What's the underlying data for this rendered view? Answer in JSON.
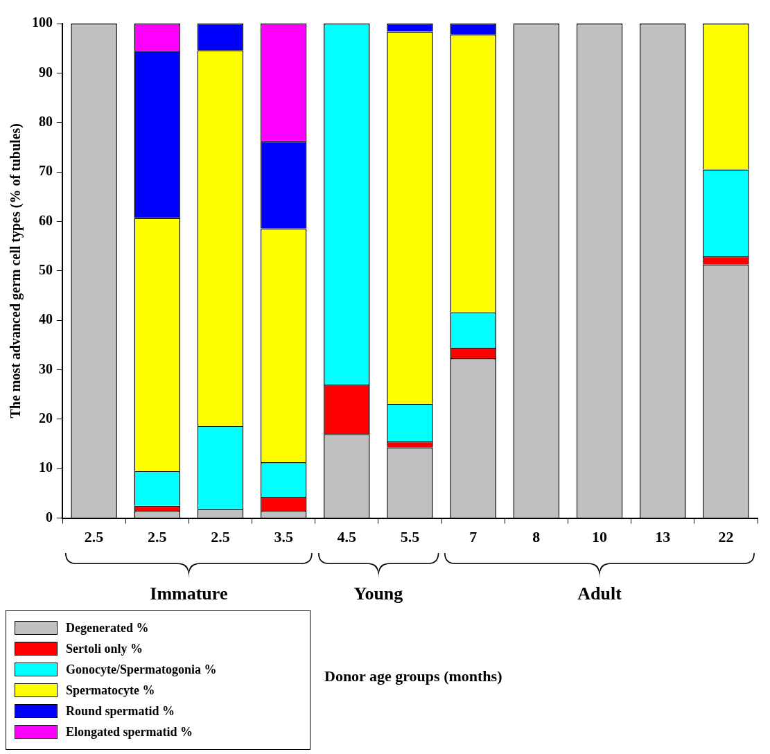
{
  "chart_data": {
    "type": "bar",
    "stacked": true,
    "ylabel": "The most advanced germ cell types (% of tubules)",
    "categories": [
      "2.5",
      "2.5",
      "2.5",
      "3.5",
      "4.5",
      "5.5",
      "7",
      "8",
      "10",
      "13",
      "22"
    ],
    "annotations": [
      "Immature",
      "Young",
      "Adult",
      "Donor age groups (months)"
    ],
    "ylim": [
      0,
      100
    ],
    "yticks": [
      0,
      10,
      20,
      30,
      40,
      50,
      60,
      70,
      80,
      90,
      100
    ],
    "grid": false,
    "legend": "bottom left",
    "series": [
      {
        "name": "Degenerated %",
        "color": "#c0c0c0",
        "values": [
          100,
          1.5,
          1.8,
          1.5,
          17,
          14.3,
          32.3,
          100,
          100,
          100,
          51.3
        ]
      },
      {
        "name": "Sertoli only %",
        "color": "#ff0000",
        "values": [
          null,
          1,
          null,
          2.8,
          10,
          1.2,
          2.1,
          null,
          null,
          null,
          1.6
        ]
      },
      {
        "name": "Gonocyte/Spermatogonia %",
        "color": "#00ffff",
        "values": [
          null,
          7,
          16.8,
          7,
          73,
          7.6,
          7.2,
          null,
          null,
          null,
          17.6
        ]
      },
      {
        "name": "Spermatocyte %",
        "color": "#ffff00",
        "values": [
          null,
          51.2,
          76,
          47.3,
          null,
          75.3,
          56.2,
          null,
          null,
          null,
          29.5
        ]
      },
      {
        "name": "Round spermatid %",
        "color": "#0000ff",
        "values": [
          null,
          33.8,
          5.4,
          17.6,
          null,
          1.6,
          2.2,
          null,
          null,
          null,
          null
        ]
      },
      {
        "name": "Elongated spermatid %",
        "color": "#ff00ff",
        "values": [
          null,
          5.5,
          null,
          23.8,
          null,
          null,
          null,
          null,
          null,
          null,
          null
        ]
      }
    ]
  }
}
